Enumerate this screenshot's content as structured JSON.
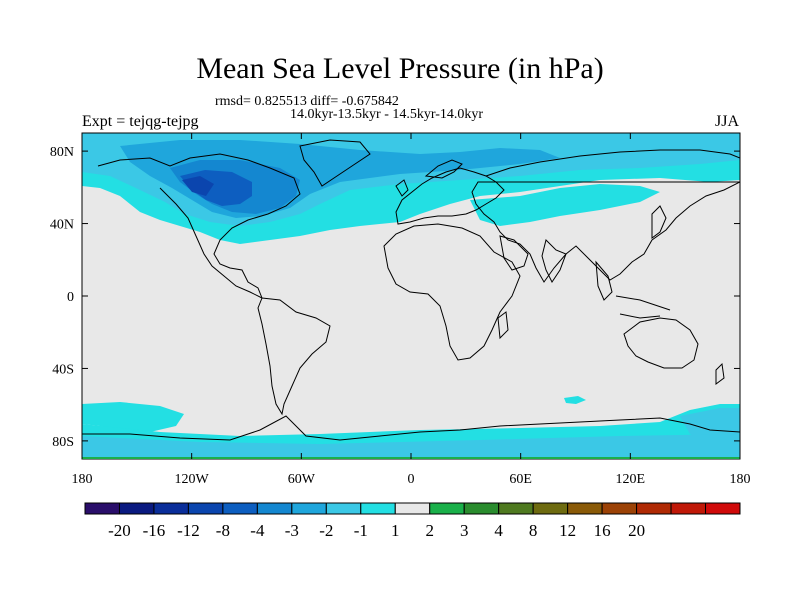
{
  "title": "Mean Sea Level Pressure (in hPa)",
  "stats_line": "rmsd= 0.825513 diff= -0.675842",
  "period_line": "14.0kyr-13.5kyr - 14.5kyr-14.0kyr",
  "expt_label": "Expt = tejqg-tejpg",
  "season_label": "JJA",
  "y_axis": {
    "ticks": [
      {
        "label": "80N",
        "lat": 80
      },
      {
        "label": "40N",
        "lat": 40
      },
      {
        "label": "0",
        "lat": 0
      },
      {
        "label": "40S",
        "lat": -40
      },
      {
        "label": "80S",
        "lat": -80
      }
    ]
  },
  "x_axis": {
    "ticks": [
      {
        "label": "180",
        "lon": -180
      },
      {
        "label": "120W",
        "lon": -120
      },
      {
        "label": "60W",
        "lon": -60
      },
      {
        "label": "0",
        "lon": 0
      },
      {
        "label": "60E",
        "lon": 60
      },
      {
        "label": "120E",
        "lon": 120
      },
      {
        "label": "180",
        "lon": 180
      }
    ]
  },
  "colorbar": {
    "colors": [
      "#2a0e6a",
      "#0a1a80",
      "#0a2e9a",
      "#0b45ae",
      "#0d5ec0",
      "#1487d0",
      "#1fa6dc",
      "#3bc8e6",
      "#23dfe3",
      "#e8e8e8",
      "#1ab04a",
      "#2a8c2e",
      "#4f7a20",
      "#6e6b10",
      "#8a5a08",
      "#9c4206",
      "#b02a04",
      "#c01808",
      "#d00a0a"
    ],
    "labels": [
      "-20",
      "-16",
      "-12",
      "-8",
      "-4",
      "-3",
      "-2",
      "-1",
      "1",
      "2",
      "3",
      "4",
      "8",
      "12",
      "16",
      "20"
    ]
  },
  "field_colors": {
    "neutral": "#e8e8e8",
    "light_cyan": "#23dfe3",
    "cyan": "#3bc8e6",
    "mid_blue": "#1fa6dc",
    "blue": "#1487d0",
    "dark_blue": "#0d5ec0",
    "darker_blue": "#0b45ae"
  }
}
